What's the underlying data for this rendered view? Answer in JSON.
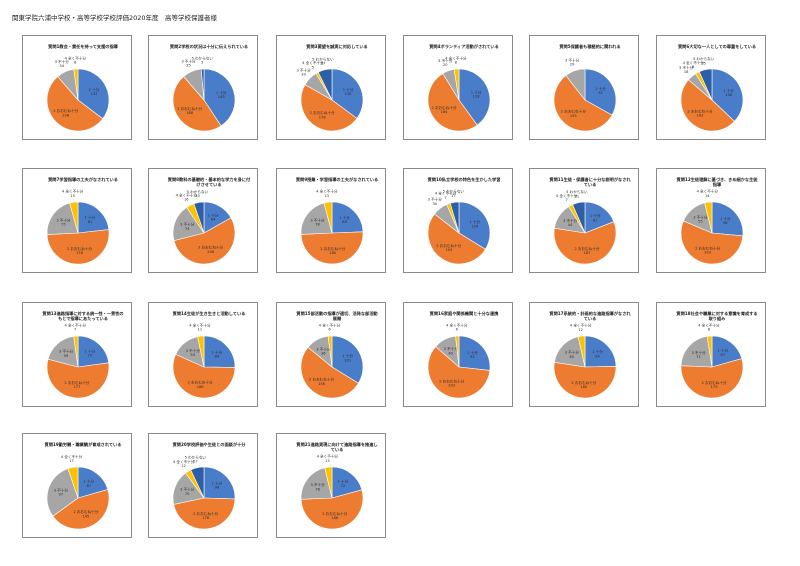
{
  "header": "関東学院六浦中学校・高等学校学校評価2020年度　高等学校保護者様",
  "categories": [
    "1 十分",
    "2 おおむね十分",
    "3 不十分",
    "4 全く不十分",
    "5 わからない"
  ],
  "colors": [
    "#4a7dc9",
    "#ee7c30",
    "#a6a6a6",
    "#fdc100",
    "#2d5fa8"
  ],
  "chart_data": [
    {
      "type": "pie",
      "title": "質問1教会・責任を持って支援の指導",
      "values": [
        131,
        198,
        34,
        8,
        0
      ]
    },
    {
      "type": "pie",
      "title": "質問2学校の状況は十分に伝えられている",
      "values": [
        143,
        168,
        35,
        0,
        5
      ]
    },
    {
      "type": "pie",
      "title": "質問3要望を誠実に対応している",
      "values": [
        130,
        178,
        30,
        5,
        27
      ]
    },
    {
      "type": "pie",
      "title": "質問4ボランティア活動がされている",
      "values": [
        128,
        164,
        20,
        8,
        0
      ]
    },
    {
      "type": "pie",
      "title": "質問5保護者も積極的に関われる",
      "values": [
        91,
        155,
        29,
        0,
        0
      ]
    },
    {
      "type": "pie",
      "title": "質問6大切な一人としての尊重をしている",
      "values": [
        138,
        183,
        18,
        8,
        25
      ]
    },
    {
      "type": "pie",
      "title": "質問7学習指導の工夫がなされている",
      "values": [
        81,
        178,
        75,
        15,
        0
      ]
    },
    {
      "type": "pie",
      "title": "質問8教科の基礎的・基本的な学力を身に付けさせている",
      "values": [
        64,
        206,
        74,
        16,
        20
      ]
    },
    {
      "type": "pie",
      "title": "質問9授業・学習指導の工夫がなされている",
      "values": [
        88,
        180,
        78,
        15,
        0
      ]
    },
    {
      "type": "pie",
      "title": "質問10私立学校の特色を生かした学習",
      "values": [
        126,
        193,
        30,
        7,
        17
      ]
    },
    {
      "type": "pie",
      "title": "質問11生徒・保護者に十分な説明がなされている",
      "values": [
        61,
        187,
        44,
        7,
        21
      ]
    },
    {
      "type": "pie",
      "title": "質問12生徒理解に基づき、きめ細かな生徒指導",
      "values": [
        98,
        203,
        55,
        14,
        0
      ]
    },
    {
      "type": "pie",
      "title": "質問13進路指導に対する統一性・一貫性のもとで指導にあたっている",
      "values": [
        72,
        177,
        59,
        7,
        0
      ]
    },
    {
      "type": "pie",
      "title": "質問14生徒が生き生きと活動している",
      "values": [
        84,
        188,
        50,
        11,
        0
      ]
    },
    {
      "type": "pie",
      "title": "質問15部活動の指導が適切、活発な部活動展開",
      "values": [
        101,
        156,
        36,
        6,
        0
      ]
    },
    {
      "type": "pie",
      "title": "質問16家庭や関係機関と十分な連携",
      "values": [
        91,
        203,
        40,
        6,
        0
      ]
    },
    {
      "type": "pie",
      "title": "質問17系統的・計画的な進路指導がなされている",
      "values": [
        84,
        180,
        65,
        12,
        0
      ]
    },
    {
      "type": "pie",
      "title": "質問18社会や職業に対する意識を育成する取り組み",
      "values": [
        67,
        179,
        71,
        8,
        0
      ]
    },
    {
      "type": "pie",
      "title": "質問19勤労観・職業観が育成されている",
      "values": [
        67,
        145,
        97,
        17,
        0
      ]
    },
    {
      "type": "pie",
      "title": "質問20学校評価や生徒との面談が十分",
      "values": [
        98,
        178,
        70,
        12,
        27
      ]
    },
    {
      "type": "pie",
      "title": "質問21進路実現に向けて進路指導を推進している",
      "values": [
        72,
        186,
        76,
        13,
        0
      ]
    }
  ]
}
